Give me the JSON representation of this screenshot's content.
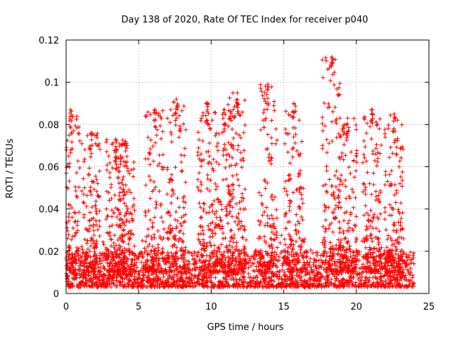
{
  "chart_data": {
    "type": "scatter",
    "title": "Day 138 of 2020, Rate Of TEC Index for receiver p040",
    "xlabel": "GPS time / hours",
    "ylabel": "ROTI / TECUs",
    "xlim": [
      0,
      25
    ],
    "ylim": [
      0,
      0.12
    ],
    "x_ticks": [
      0,
      5,
      10,
      15,
      20,
      25
    ],
    "x_tick_labels": [
      "0",
      "5",
      "10",
      "15",
      "20",
      "25"
    ],
    "y_ticks": [
      0,
      0.02,
      0.04,
      0.06,
      0.08,
      0.1,
      0.12
    ],
    "y_tick_labels": [
      "0",
      "0.02",
      "0.04",
      "0.06",
      "0.08",
      "0.1",
      "0.12"
    ],
    "grid": true,
    "marker": "+",
    "marker_color": "#ff0000",
    "series": [
      {
        "name": "ROTI",
        "x_range": [
          0,
          24
        ],
        "baseline_range": [
          0.003,
          0.02
        ],
        "burst_peaks": [
          {
            "x": 0.3,
            "y": 0.087
          },
          {
            "x": 1.7,
            "y": 0.076
          },
          {
            "x": 3.4,
            "y": 0.073
          },
          {
            "x": 4.1,
            "y": 0.072
          },
          {
            "x": 6.1,
            "y": 0.087
          },
          {
            "x": 7.6,
            "y": 0.092
          },
          {
            "x": 9.7,
            "y": 0.09
          },
          {
            "x": 10.9,
            "y": 0.087
          },
          {
            "x": 11.8,
            "y": 0.095
          },
          {
            "x": 13.9,
            "y": 0.099
          },
          {
            "x": 15.7,
            "y": 0.09
          },
          {
            "x": 18.3,
            "y": 0.112
          },
          {
            "x": 19.4,
            "y": 0.083
          },
          {
            "x": 21.1,
            "y": 0.087
          },
          {
            "x": 22.6,
            "y": 0.085
          }
        ]
      }
    ]
  }
}
